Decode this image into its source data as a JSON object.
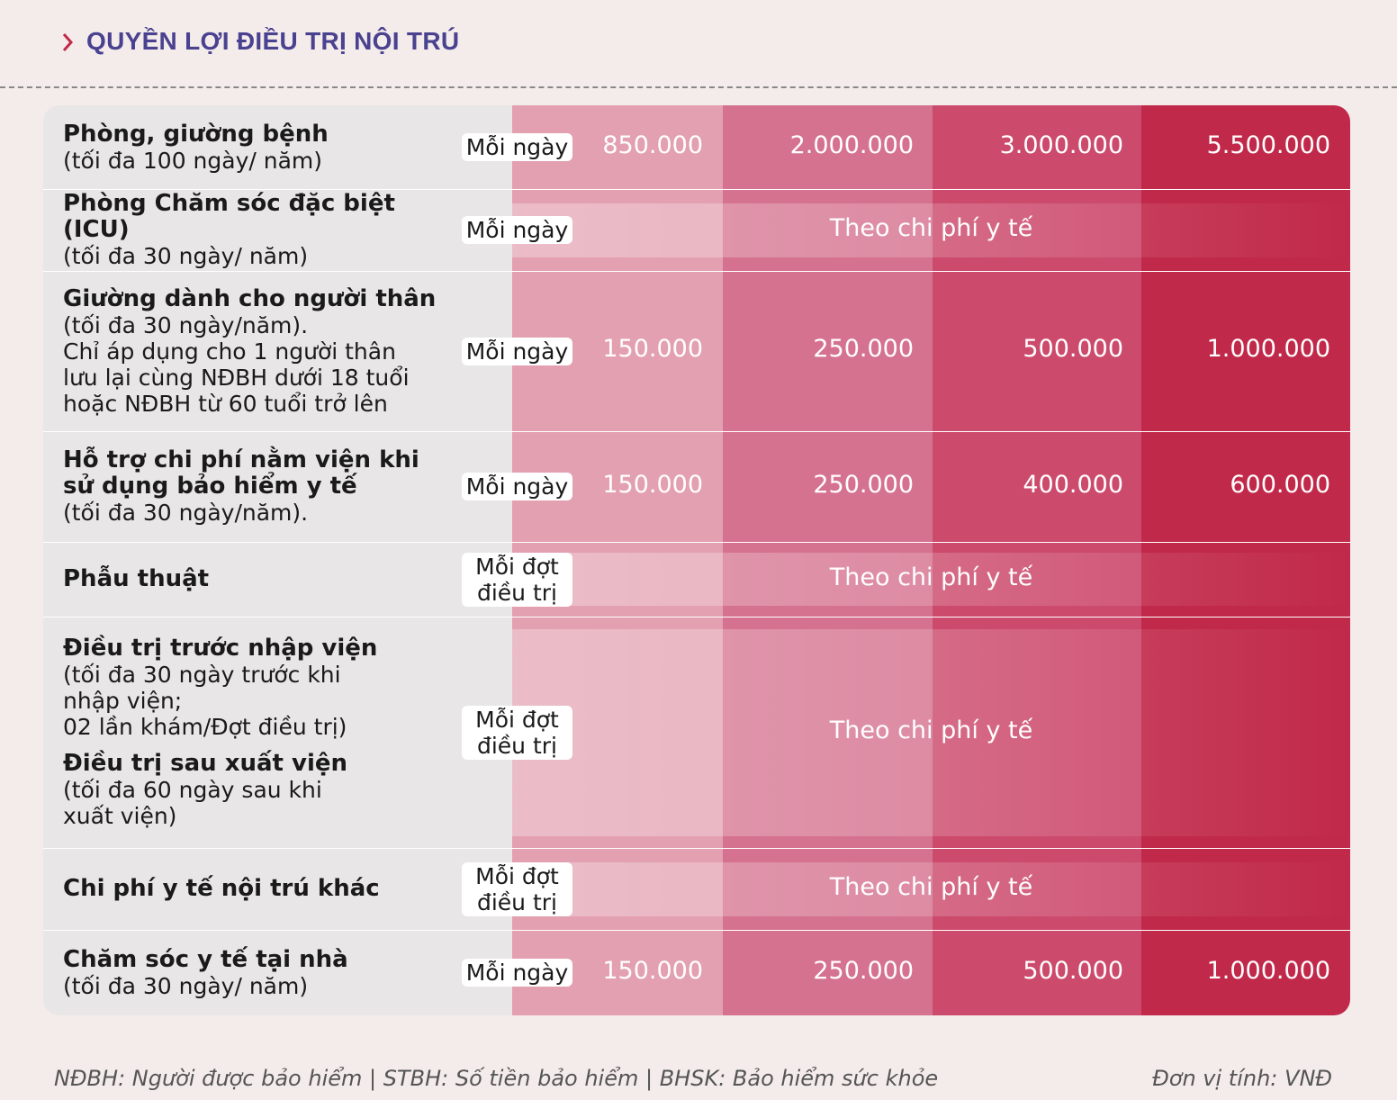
{
  "header": {
    "title": "QUYỀN LỢI ĐIỀU TRỊ NỘI TRÚ"
  },
  "table": {
    "rows": [
      {
        "items": [
          {
            "title": [
              "Phòng, giường bệnh"
            ],
            "note": [
              "(tối đa 100 ngày/ năm)"
            ]
          }
        ],
        "unit": [
          "Mỗi ngày"
        ],
        "values": [
          "850.000",
          "2.000.000",
          "3.000.000",
          "5.500.000"
        ]
      },
      {
        "items": [
          {
            "title": [
              "Phòng Chăm sóc đặc biệt (ICU)"
            ],
            "note": [
              "(tối đa 30 ngày/ năm)"
            ]
          }
        ],
        "unit": [
          "Mỗi ngày"
        ],
        "merged": "Theo chi phí y tế"
      },
      {
        "items": [
          {
            "title": [
              "Giường dành cho người thân"
            ],
            "note": [
              "(tối đa 30 ngày/năm).",
              "Chỉ áp dụng cho 1 người thân",
              "lưu lại cùng NĐBH dưới 18 tuổi",
              "hoặc NĐBH từ 60 tuổi trở lên"
            ]
          }
        ],
        "unit": [
          "Mỗi ngày"
        ],
        "values": [
          "150.000",
          "250.000",
          "500.000",
          "1.000.000"
        ]
      },
      {
        "items": [
          {
            "title": [
              "Hỗ trợ chi phí nằm viện khi",
              "sử dụng bảo hiểm y tế"
            ],
            "note": [
              "(tối đa 30 ngày/năm)."
            ]
          }
        ],
        "unit": [
          "Mỗi ngày"
        ],
        "values": [
          "150.000",
          "250.000",
          "400.000",
          "600.000"
        ]
      },
      {
        "items": [
          {
            "title": [
              "Phẫu thuật"
            ],
            "note": []
          }
        ],
        "unit": [
          "Mỗi đợt",
          "điều trị"
        ],
        "merged": "Theo chi phí y tế"
      },
      {
        "items": [
          {
            "title": [
              "Điều trị trước nhập viện"
            ],
            "note": [
              "(tối đa 30 ngày trước khi",
              "nhập viện;",
              "02 lần khám/Đợt điều trị)"
            ]
          },
          {
            "title": [
              "Điều trị sau xuất viện"
            ],
            "note": [
              "(tối đa 60 ngày sau khi",
              "xuất viện)"
            ]
          }
        ],
        "unit": [
          "Mỗi đợt",
          "điều trị"
        ],
        "merged": "Theo chi phí y tế"
      },
      {
        "items": [
          {
            "title": [
              "Chi phí y tế nội trú khác"
            ],
            "note": []
          }
        ],
        "unit": [
          "Mỗi đợt",
          "điều trị"
        ],
        "merged": "Theo chi phí y tế"
      },
      {
        "items": [
          {
            "title": [
              "Chăm sóc y tế tại nhà"
            ],
            "note": [
              "(tối đa 30 ngày/ năm)"
            ]
          }
        ],
        "unit": [
          "Mỗi ngày"
        ],
        "values": [
          "150.000",
          "250.000",
          "500.000",
          "1.000.000"
        ]
      }
    ]
  },
  "footer": {
    "note": "NĐBH: Người được bảo hiểm | STBH: Số tiền bảo hiểm | BHSK: Bảo hiểm sức khỏe",
    "unit": "Đơn vị tính: VNĐ"
  }
}
